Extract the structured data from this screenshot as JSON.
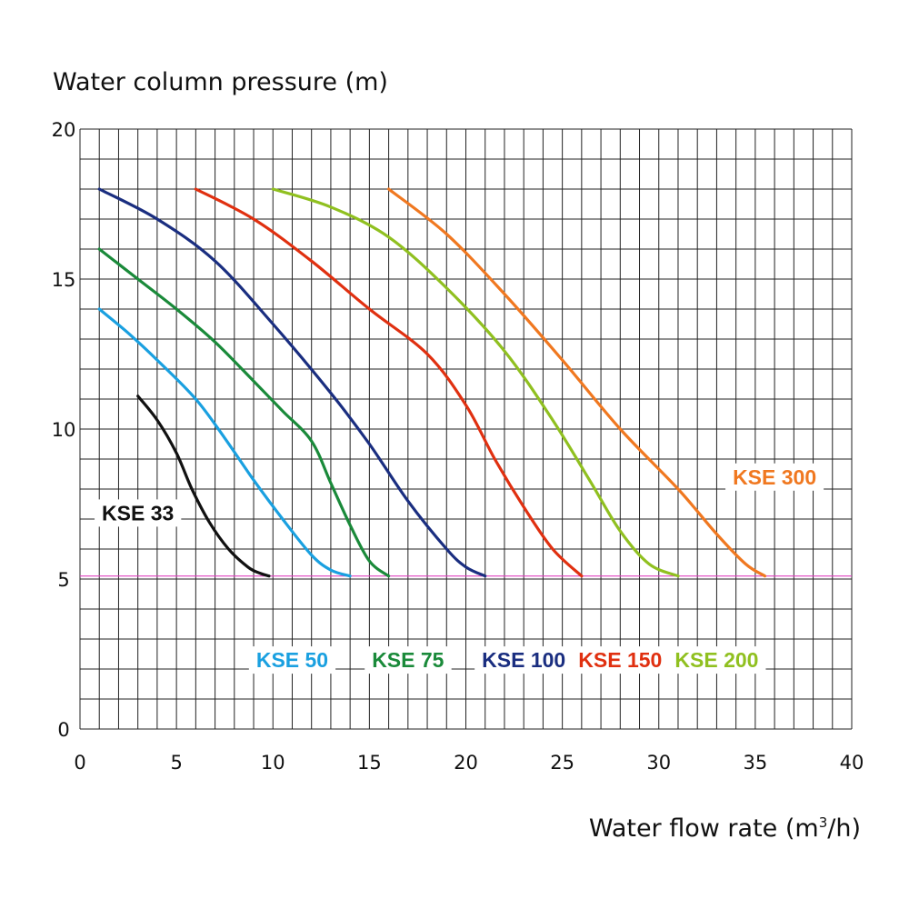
{
  "chart_data": {
    "type": "line",
    "ylabel": "Water column pressure (m)",
    "xlabel_main": "Water flow rate (m",
    "xlabel_sup": "3",
    "xlabel_end": "/h)",
    "xlim": [
      0,
      40
    ],
    "ylim": [
      0,
      20
    ],
    "x_ticks": [
      "0",
      "5",
      "10",
      "15",
      "20",
      "25",
      "30",
      "35",
      "40"
    ],
    "y_ticks": [
      "0",
      "5",
      "10",
      "15",
      "20"
    ],
    "grid": true,
    "reference_line": {
      "y": 5.1,
      "color": "#e040c0"
    },
    "series": [
      {
        "name": "KSE 33",
        "color": "#111111",
        "points": [
          [
            3,
            11.1
          ],
          [
            4,
            10.3
          ],
          [
            5,
            9.2
          ],
          [
            5.8,
            8.0
          ],
          [
            6.7,
            6.9
          ],
          [
            7.7,
            6.0
          ],
          [
            8.7,
            5.4
          ],
          [
            9.3,
            5.2
          ],
          [
            9.8,
            5.1
          ]
        ]
      },
      {
        "name": "KSE 50",
        "color": "#1aa0e0",
        "points": [
          [
            1,
            14.0
          ],
          [
            2.5,
            13.2
          ],
          [
            4,
            12.3
          ],
          [
            6,
            11.0
          ],
          [
            7.5,
            9.7
          ],
          [
            9,
            8.3
          ],
          [
            10.5,
            7.0
          ],
          [
            12,
            5.8
          ],
          [
            13,
            5.3
          ],
          [
            14,
            5.1
          ]
        ]
      },
      {
        "name": "KSE 75",
        "color": "#1a8a3a",
        "points": [
          [
            1,
            16.0
          ],
          [
            3,
            15.0
          ],
          [
            5,
            14.0
          ],
          [
            7,
            12.9
          ],
          [
            9,
            11.6
          ],
          [
            10.5,
            10.6
          ],
          [
            12,
            9.6
          ],
          [
            13,
            8.2
          ],
          [
            14,
            6.8
          ],
          [
            15,
            5.6
          ],
          [
            16,
            5.1
          ]
        ]
      },
      {
        "name": "KSE 100",
        "color": "#1a2e80",
        "points": [
          [
            1,
            18.0
          ],
          [
            4,
            17.0
          ],
          [
            7,
            15.6
          ],
          [
            10,
            13.5
          ],
          [
            13,
            11.2
          ],
          [
            15,
            9.5
          ],
          [
            17,
            7.6
          ],
          [
            19,
            6.0
          ],
          [
            20,
            5.4
          ],
          [
            21,
            5.1
          ]
        ]
      },
      {
        "name": "KSE 150",
        "color": "#e03010",
        "points": [
          [
            6,
            18.0
          ],
          [
            9,
            17.0
          ],
          [
            12,
            15.6
          ],
          [
            15,
            14.0
          ],
          [
            18,
            12.5
          ],
          [
            20,
            10.8
          ],
          [
            21.5,
            9.0
          ],
          [
            23,
            7.4
          ],
          [
            24.5,
            6.0
          ],
          [
            26,
            5.1
          ]
        ]
      },
      {
        "name": "KSE 200",
        "color": "#90c020",
        "points": [
          [
            10,
            18.0
          ],
          [
            13,
            17.4
          ],
          [
            16,
            16.4
          ],
          [
            19,
            14.7
          ],
          [
            22,
            12.6
          ],
          [
            24.5,
            10.3
          ],
          [
            26.5,
            8.2
          ],
          [
            28,
            6.6
          ],
          [
            29.5,
            5.5
          ],
          [
            31,
            5.1
          ]
        ]
      },
      {
        "name": "KSE 300",
        "color": "#f07820",
        "points": [
          [
            16,
            18.0
          ],
          [
            19,
            16.5
          ],
          [
            22,
            14.5
          ],
          [
            25,
            12.3
          ],
          [
            28,
            10.0
          ],
          [
            31,
            8.0
          ],
          [
            33,
            6.5
          ],
          [
            34.5,
            5.5
          ],
          [
            35.5,
            5.1
          ]
        ]
      }
    ],
    "labels": [
      {
        "text": "KSE 33",
        "color": "#111111",
        "at": [
          3,
          7.2
        ]
      },
      {
        "text": "KSE 50",
        "color": "#1aa0e0",
        "at": [
          11,
          2.3
        ]
      },
      {
        "text": "KSE 75",
        "color": "#1a8a3a",
        "at": [
          17,
          2.3
        ]
      },
      {
        "text": "KSE 100",
        "color": "#1a2e80",
        "at": [
          23,
          2.3
        ]
      },
      {
        "text": "KSE 150",
        "color": "#e03010",
        "at": [
          28,
          2.3
        ]
      },
      {
        "text": "KSE 200",
        "color": "#90c020",
        "at": [
          33,
          2.3
        ]
      },
      {
        "text": "KSE 300",
        "color": "#f07820",
        "at": [
          36,
          8.4
        ]
      }
    ]
  }
}
